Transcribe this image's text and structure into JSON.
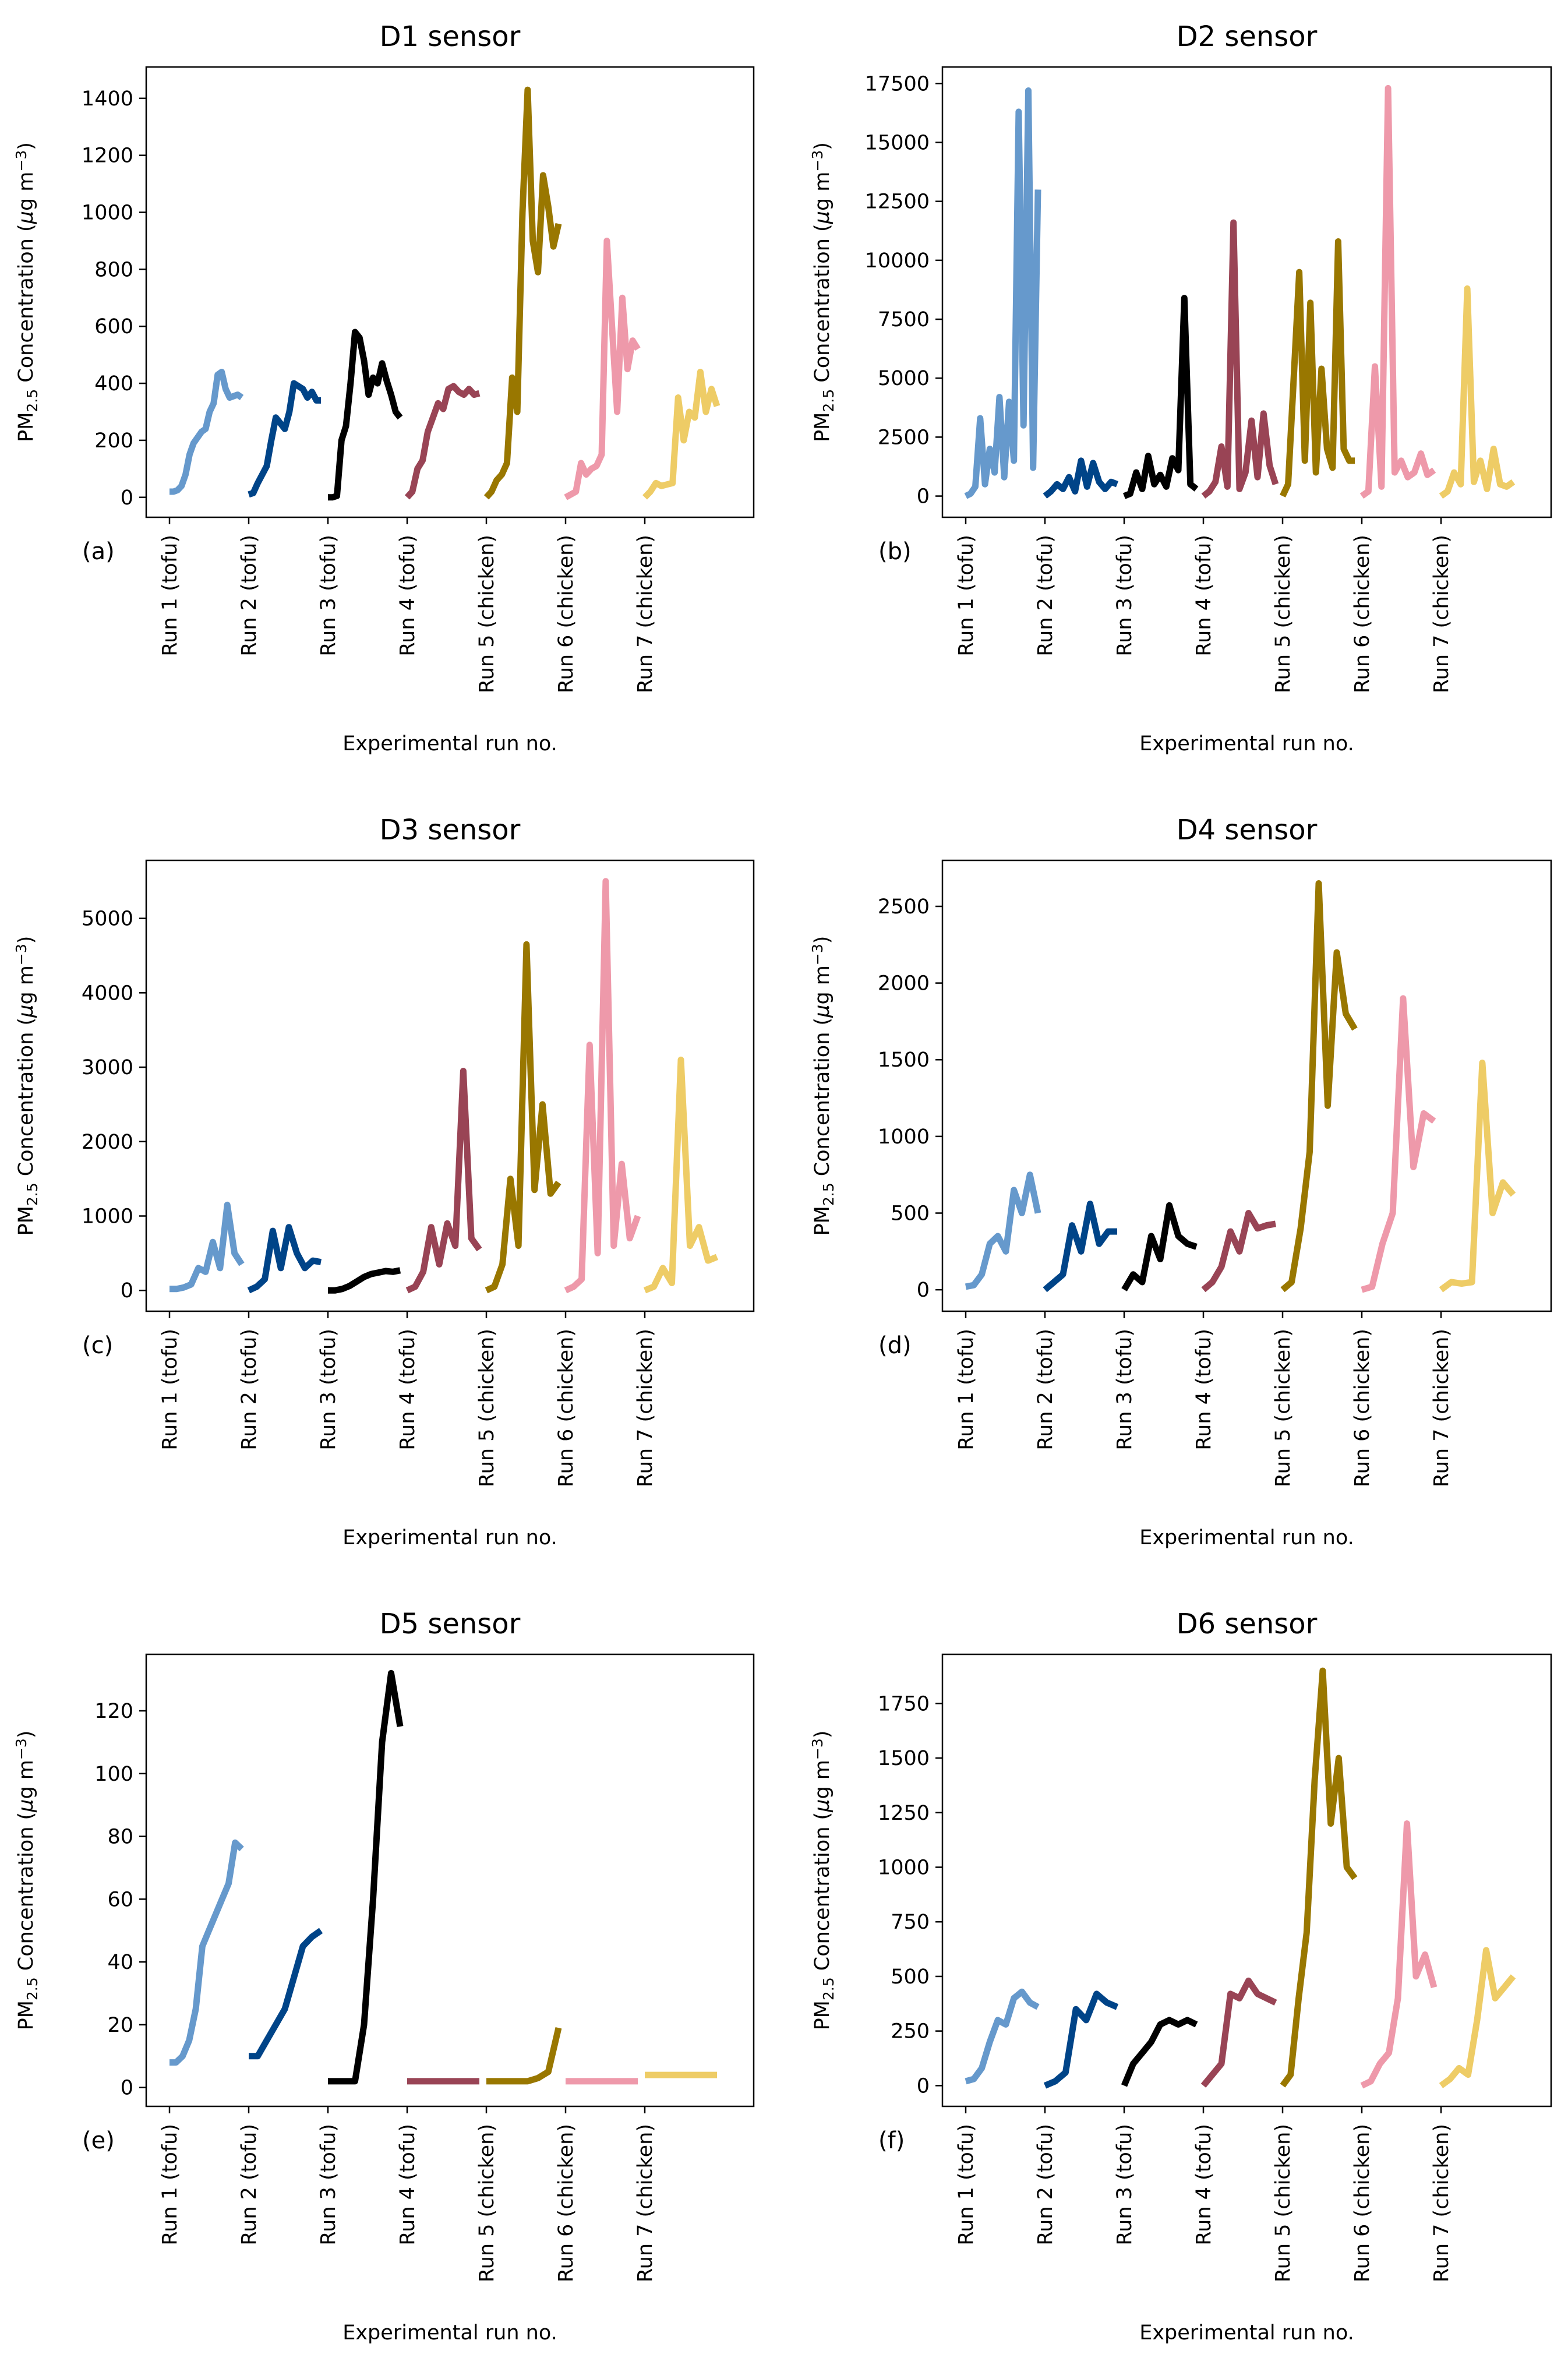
{
  "figure": {
    "xlabel": "Experimental run no.",
    "ylabel_prefix": "PM",
    "ylabel_sub": "2.5",
    "ylabel_mid": " Concentration (",
    "ylabel_mu": "μ",
    "ylabel_unit": "g m",
    "ylabel_sup": "−3",
    "ylabel_end": ")"
  },
  "runs": [
    {
      "label": "Run 1 (tofu)",
      "color": "#6699cc"
    },
    {
      "label": "Run 2 (tofu)",
      "color": "#004488"
    },
    {
      "label": "Run 3 (tofu)",
      "color": "#000000"
    },
    {
      "label": "Run 4 (tofu)",
      "color": "#994455"
    },
    {
      "label": "Run 5 (chicken)",
      "color": "#997700"
    },
    {
      "label": "Run 6 (chicken)",
      "color": "#ee99aa"
    },
    {
      "label": "Run 7 (chicken)",
      "color": "#eecc66"
    }
  ],
  "chart_data": [
    {
      "type": "line",
      "title": "D1 sensor",
      "panel": "(a)",
      "ylim": [
        -70,
        1510
      ],
      "yticks": [
        0,
        200,
        400,
        600,
        800,
        1000,
        1200,
        1400
      ],
      "series": [
        {
          "name": "Run 1 (tofu)",
          "values": [
            20,
            20,
            25,
            40,
            80,
            150,
            190,
            210,
            230,
            240,
            300,
            330,
            430,
            440,
            380,
            350,
            355,
            360,
            350
          ]
        },
        {
          "name": "Run 2 (tofu)",
          "values": [
            10,
            15,
            50,
            80,
            110,
            200,
            280,
            260,
            240,
            300,
            400,
            390,
            380,
            350,
            370,
            340,
            340
          ]
        },
        {
          "name": "Run 3 (tofu)",
          "values": [
            0,
            0,
            5,
            200,
            250,
            400,
            580,
            560,
            480,
            360,
            420,
            400,
            470,
            410,
            360,
            300,
            280
          ]
        },
        {
          "name": "Run 4 (tofu)",
          "values": [
            0,
            20,
            100,
            130,
            230,
            280,
            330,
            310,
            380,
            390,
            370,
            360,
            380,
            360,
            365
          ]
        },
        {
          "name": "Run 5 (chicken)",
          "values": [
            0,
            20,
            60,
            80,
            120,
            420,
            300,
            1000,
            1430,
            900,
            790,
            1130,
            1020,
            880,
            960
          ]
        },
        {
          "name": "Run 6 (chicken)",
          "values": [
            0,
            10,
            20,
            120,
            80,
            100,
            110,
            150,
            900,
            600,
            300,
            700,
            450,
            550,
            520
          ]
        },
        {
          "name": "Run 7 (chicken)",
          "values": [
            0,
            20,
            50,
            40,
            45,
            50,
            350,
            200,
            300,
            280,
            440,
            300,
            380,
            320
          ]
        }
      ]
    },
    {
      "type": "line",
      "title": "D2 sensor",
      "panel": "(b)",
      "ylim": [
        -900,
        18200
      ],
      "yticks": [
        0,
        2500,
        5000,
        7500,
        10000,
        12500,
        15000,
        17500
      ],
      "series": [
        {
          "name": "Run 1 (tofu)",
          "values": [
            0,
            100,
            400,
            3300,
            500,
            2000,
            1000,
            4200,
            800,
            4000,
            1500,
            16300,
            3000,
            17200,
            1200,
            13000
          ]
        },
        {
          "name": "Run 2 (tofu)",
          "values": [
            0,
            200,
            500,
            300,
            800,
            200,
            1500,
            400,
            1400,
            600,
            300,
            600,
            500
          ]
        },
        {
          "name": "Run 3 (tofu)",
          "values": [
            0,
            100,
            1000,
            300,
            1700,
            500,
            900,
            400,
            1600,
            1100,
            8400,
            500,
            300
          ]
        },
        {
          "name": "Run 4 (tofu)",
          "values": [
            0,
            200,
            600,
            2100,
            400,
            11600,
            300,
            1000,
            3200,
            800,
            3500,
            1300,
            500
          ]
        },
        {
          "name": "Run 5 (chicken)",
          "values": [
            0,
            500,
            5000,
            9500,
            1500,
            8200,
            1000,
            5400,
            2000,
            1200,
            10800,
            2000,
            1500,
            1500
          ]
        },
        {
          "name": "Run 6 (chicken)",
          "values": [
            0,
            200,
            5500,
            400,
            17300,
            1000,
            1500,
            800,
            1000,
            1800,
            900,
            1100
          ]
        },
        {
          "name": "Run 7 (chicken)",
          "values": [
            0,
            200,
            1000,
            500,
            8800,
            600,
            1500,
            300,
            2000,
            500,
            400,
            600
          ]
        }
      ]
    },
    {
      "type": "line",
      "title": "D3 sensor",
      "panel": "(c)",
      "ylim": [
        -280,
        5780
      ],
      "yticks": [
        0,
        1000,
        2000,
        3000,
        4000,
        5000
      ],
      "series": [
        {
          "name": "Run 1 (tofu)",
          "values": [
            20,
            20,
            40,
            80,
            300,
            250,
            650,
            300,
            1150,
            500,
            350
          ]
        },
        {
          "name": "Run 2 (tofu)",
          "values": [
            0,
            50,
            150,
            800,
            300,
            850,
            500,
            300,
            400,
            380
          ]
        },
        {
          "name": "Run 3 (tofu)",
          "values": [
            0,
            0,
            20,
            60,
            120,
            180,
            220,
            240,
            260,
            250,
            270
          ]
        },
        {
          "name": "Run 4 (tofu)",
          "values": [
            0,
            50,
            250,
            850,
            350,
            900,
            600,
            2950,
            700,
            550
          ]
        },
        {
          "name": "Run 5 (chicken)",
          "values": [
            0,
            50,
            350,
            1500,
            600,
            4650,
            1350,
            2500,
            1300,
            1450
          ]
        },
        {
          "name": "Run 6 (chicken)",
          "values": [
            0,
            50,
            150,
            3300,
            500,
            5500,
            600,
            1700,
            700,
            1000
          ]
        },
        {
          "name": "Run 7 (chicken)",
          "values": [
            0,
            50,
            300,
            100,
            3100,
            600,
            850,
            400,
            450
          ]
        }
      ]
    },
    {
      "type": "line",
      "title": "D4 sensor",
      "panel": "(d)",
      "ylim": [
        -140,
        2800
      ],
      "yticks": [
        0,
        500,
        1000,
        1500,
        2000,
        2500
      ],
      "series": [
        {
          "name": "Run 1 (tofu)",
          "values": [
            20,
            30,
            100,
            300,
            350,
            250,
            650,
            500,
            750,
            500
          ]
        },
        {
          "name": "Run 2 (tofu)",
          "values": [
            0,
            50,
            100,
            420,
            250,
            560,
            300,
            380,
            380
          ]
        },
        {
          "name": "Run 3 (tofu)",
          "values": [
            0,
            100,
            50,
            350,
            200,
            550,
            350,
            300,
            280
          ]
        },
        {
          "name": "Run 4 (tofu)",
          "values": [
            0,
            50,
            150,
            380,
            250,
            500,
            400,
            420,
            430
          ]
        },
        {
          "name": "Run 5 (chicken)",
          "values": [
            0,
            50,
            400,
            900,
            2650,
            1200,
            2200,
            1800,
            1700
          ]
        },
        {
          "name": "Run 6 (chicken)",
          "values": [
            0,
            20,
            300,
            500,
            1900,
            800,
            1150,
            1100
          ]
        },
        {
          "name": "Run 7 (chicken)",
          "values": [
            0,
            50,
            40,
            50,
            1480,
            500,
            700,
            620
          ]
        }
      ]
    },
    {
      "type": "line",
      "title": "D5 sensor",
      "panel": "(e)",
      "ylim": [
        -6,
        138
      ],
      "yticks": [
        0,
        20,
        40,
        60,
        80,
        100,
        120
      ],
      "series": [
        {
          "name": "Run 1 (tofu)",
          "values": [
            8,
            8,
            10,
            15,
            25,
            45,
            50,
            55,
            60,
            65,
            78,
            76
          ]
        },
        {
          "name": "Run 2 (tofu)",
          "values": [
            10,
            10,
            15,
            20,
            25,
            35,
            45,
            48,
            50
          ]
        },
        {
          "name": "Run 3 (tofu)",
          "values": [
            2,
            2,
            2,
            2,
            20,
            60,
            110,
            132,
            115
          ]
        },
        {
          "name": "Run 4 (tofu)",
          "values": [
            2,
            2,
            2,
            2,
            2,
            2,
            2,
            2
          ]
        },
        {
          "name": "Run 5 (chicken)",
          "values": [
            2,
            2,
            2,
            2,
            2,
            3,
            5,
            19
          ]
        },
        {
          "name": "Run 6 (chicken)",
          "values": [
            2,
            2,
            2,
            2,
            2,
            2,
            2,
            2
          ]
        },
        {
          "name": "Run 7 (chicken)",
          "values": [
            4,
            4,
            4,
            4,
            4,
            4,
            4,
            4
          ]
        }
      ]
    },
    {
      "type": "line",
      "title": "D6 sensor",
      "panel": "(f)",
      "ylim": [
        -95,
        1975
      ],
      "yticks": [
        0,
        250,
        500,
        750,
        1000,
        1250,
        1500,
        1750
      ],
      "series": [
        {
          "name": "Run 1 (tofu)",
          "values": [
            20,
            30,
            80,
            200,
            300,
            280,
            400,
            430,
            380,
            360
          ]
        },
        {
          "name": "Run 2 (tofu)",
          "values": [
            0,
            20,
            60,
            350,
            300,
            420,
            380,
            360
          ]
        },
        {
          "name": "Run 3 (tofu)",
          "values": [
            0,
            100,
            150,
            200,
            280,
            300,
            280,
            300,
            280
          ]
        },
        {
          "name": "Run 4 (tofu)",
          "values": [
            0,
            50,
            100,
            420,
            400,
            480,
            420,
            400,
            380
          ]
        },
        {
          "name": "Run 5 (chicken)",
          "values": [
            0,
            50,
            400,
            700,
            1400,
            1900,
            1200,
            1500,
            1000,
            950
          ]
        },
        {
          "name": "Run 6 (chicken)",
          "values": [
            0,
            20,
            100,
            150,
            400,
            1200,
            500,
            600,
            450
          ]
        },
        {
          "name": "Run 7 (chicken)",
          "values": [
            0,
            30,
            80,
            50,
            300,
            620,
            400,
            450,
            500
          ]
        }
      ]
    }
  ]
}
